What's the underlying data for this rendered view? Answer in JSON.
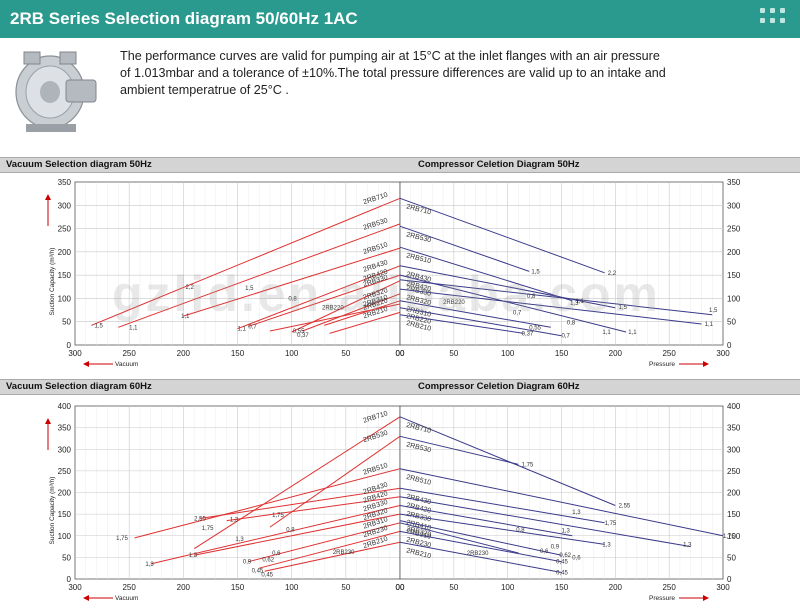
{
  "header": {
    "title": "2RB Series Selection diagram 50/60Hz 1AC"
  },
  "intro": {
    "line1": "The performance curves are valid for pumping air at 15°C at the inlet flanges with an air pressure",
    "line2": "of 1.013mbar and a tolerance of ±10%.The total pressure differences are valid up to an intake and",
    "line3": "ambient temperatrue of 25°C ."
  },
  "watermark": "gzlid.en.alibaba.com",
  "colors": {
    "header": "#2a9a8e",
    "vacuum_curve": "#e03030",
    "compressor_curve": "#3a3a8a",
    "grid": "#c8c8c8"
  },
  "pump_icon": "ring-blower-image",
  "sections": [
    {
      "left_title": "Vacuum Selection diagram 50Hz",
      "right_title": "Compressor Celetion Diagram 50Hz"
    },
    {
      "left_title": "Vacuum Selection diagram 60Hz",
      "right_title": "Compressor Celetion Diagram 60Hz"
    }
  ],
  "chart_data": [
    {
      "type": "line",
      "name": "vacuum-50hz",
      "title": "Vacuum Selection diagram 50Hz",
      "xlabel": "Vacuum",
      "ylabel": "Suction Capacity (m³/h)",
      "xlim": [
        300,
        0
      ],
      "ylim": [
        0,
        350
      ],
      "xticks": [
        "300",
        "250",
        "200",
        "150",
        "100",
        "50",
        "00"
      ],
      "yticks": [
        "0",
        "50",
        "100",
        "150",
        "200",
        "250",
        "300",
        "350"
      ],
      "grid": true,
      "series": [
        {
          "name": "2RB710",
          "points": [
            [
              285,
              42
            ],
            [
              0,
              315
            ]
          ]
        },
        {
          "name": "2RB530",
          "points": [
            [
              260,
              38
            ],
            [
              0,
              260
            ]
          ]
        },
        {
          "name": "2RB510",
          "points": [
            [
              200,
              62
            ],
            [
              0,
              208
            ]
          ]
        },
        {
          "name": "2RB430",
          "points": [
            [
              150,
              35
            ],
            [
              0,
              170
            ]
          ]
        },
        {
          "name": "2RB420",
          "points": [
            [
              140,
              40
            ],
            [
              0,
              150
            ]
          ]
        },
        {
          "name": "2RB330",
          "points": [
            [
              100,
              28
            ],
            [
              0,
              138
            ]
          ]
        },
        {
          "name": "2RB320",
          "points": [
            [
              90,
              30
            ],
            [
              0,
              110
            ]
          ]
        },
        {
          "name": "2RB310",
          "points": [
            [
              70,
              42
            ],
            [
              0,
              95
            ]
          ]
        },
        {
          "name": "2RB220",
          "points": [
            [
              120,
              30
            ],
            [
              0,
              88
            ]
          ]
        },
        {
          "name": "2RB210",
          "points": [
            [
              65,
              25
            ],
            [
              0,
              70
            ]
          ]
        }
      ],
      "annotations": [
        {
          "text": "1,5",
          "x": 282,
          "y": 42
        },
        {
          "text": "1,1",
          "x": 250,
          "y": 38
        },
        {
          "text": "2,2",
          "x": 198,
          "y": 125
        },
        {
          "text": "1,5",
          "x": 143,
          "y": 122
        },
        {
          "text": "1,1",
          "x": 202,
          "y": 62
        },
        {
          "text": "0,8",
          "x": 103,
          "y": 100
        },
        {
          "text": "1,1",
          "x": 150,
          "y": 35
        },
        {
          "text": "0,7",
          "x": 140,
          "y": 40
        },
        {
          "text": "0,55",
          "x": 99,
          "y": 30
        },
        {
          "text": "0,37",
          "x": 95,
          "y": 22
        },
        {
          "text": "2RB220",
          "x": 72,
          "y": 80
        }
      ]
    },
    {
      "type": "line",
      "name": "compressor-50hz",
      "title": "Compressor Celetion Diagram 50Hz",
      "xlabel": "Pressure",
      "ylabel": "",
      "xlim": [
        0,
        300
      ],
      "ylim": [
        0,
        350
      ],
      "xticks": [
        "00",
        "50",
        "100",
        "150",
        "200",
        "250",
        "300"
      ],
      "yticks": [
        "0",
        "50",
        "100",
        "150",
        "200",
        "250",
        "300",
        "350"
      ],
      "grid": true,
      "series": [
        {
          "name": "2RB710",
          "points": [
            [
              0,
              315
            ],
            [
              190,
              155
            ]
          ]
        },
        {
          "name": "2RB530",
          "points": [
            [
              0,
              255
            ],
            [
              120,
              158
            ]
          ]
        },
        {
          "name": "2RB510",
          "points": [
            [
              0,
              210
            ],
            [
              160,
              95
            ]
          ]
        },
        {
          "name": "2RB430",
          "points": [
            [
              0,
              170
            ],
            [
              200,
              80
            ]
          ]
        },
        {
          "name": "2RB420",
          "points": [
            [
              0,
              150
            ],
            [
              210,
              28
            ]
          ]
        },
        {
          "name": "2RB330",
          "points": [
            [
              0,
              140
            ],
            [
              290,
              65
            ]
          ]
        },
        {
          "name": "2RB320",
          "points": [
            [
              0,
              120
            ],
            [
              280,
              45
            ]
          ]
        },
        {
          "name": "2RB310",
          "points": [
            [
              0,
              95
            ],
            [
              140,
              38
            ]
          ]
        },
        {
          "name": "2RB220",
          "points": [
            [
              0,
              80
            ],
            [
              150,
              20
            ]
          ]
        },
        {
          "name": "2RB210",
          "points": [
            [
              0,
              65
            ],
            [
              115,
              25
            ]
          ]
        }
      ],
      "annotations": [
        {
          "text": "2,2",
          "x": 193,
          "y": 155
        },
        {
          "text": "1,5",
          "x": 122,
          "y": 158
        },
        {
          "text": "1,1",
          "x": 163,
          "y": 95
        },
        {
          "text": "0,8",
          "x": 118,
          "y": 105
        },
        {
          "text": "0,7",
          "x": 105,
          "y": 70
        },
        {
          "text": "1,1",
          "x": 212,
          "y": 28
        },
        {
          "text": "1,5",
          "x": 287,
          "y": 75
        },
        {
          "text": "1,1",
          "x": 283,
          "y": 45
        },
        {
          "text": "0,55",
          "x": 120,
          "y": 38
        },
        {
          "text": "0,37",
          "x": 113,
          "y": 25
        },
        {
          "text": "0,8",
          "x": 155,
          "y": 48
        },
        {
          "text": "1,1",
          "x": 188,
          "y": 28
        },
        {
          "text": "0,7",
          "x": 150,
          "y": 20
        },
        {
          "text": "1,3",
          "x": 158,
          "y": 90
        },
        {
          "text": "1,5",
          "x": 203,
          "y": 82
        },
        {
          "text": "2RB220",
          "x": 40,
          "y": 92
        }
      ]
    },
    {
      "type": "line",
      "name": "vacuum-60hz",
      "title": "Vacuum Selection diagram 60Hz",
      "xlabel": "Vacuum",
      "ylabel": "Suction Capacity (m³/h)",
      "xlim": [
        300,
        0
      ],
      "ylim": [
        0,
        400
      ],
      "xticks": [
        "300",
        "250",
        "200",
        "150",
        "100",
        "50",
        "00"
      ],
      "yticks": [
        "0",
        "50",
        "100",
        "150",
        "200",
        "250",
        "300",
        "350",
        "400"
      ],
      "grid": true,
      "series": [
        {
          "name": "2RB710",
          "points": [
            [
              190,
              70
            ],
            [
              0,
              375
            ]
          ]
        },
        {
          "name": "2RB530",
          "points": [
            [
              120,
              120
            ],
            [
              0,
              330
            ]
          ]
        },
        {
          "name": "2RB510",
          "points": [
            [
              245,
              95
            ],
            [
              0,
              255
            ]
          ]
        },
        {
          "name": "2RB430",
          "points": [
            [
              185,
              140
            ],
            [
              0,
              210
            ]
          ]
        },
        {
          "name": "2RB420",
          "points": [
            [
              160,
              135
            ],
            [
              0,
              190
            ]
          ]
        },
        {
          "name": "2RB330",
          "points": [
            [
              230,
              35
            ],
            [
              0,
              170
            ]
          ]
        },
        {
          "name": "2RB320",
          "points": [
            [
              190,
              55
            ],
            [
              0,
              150
            ]
          ]
        },
        {
          "name": "2RB310",
          "points": [
            [
              140,
              40
            ],
            [
              0,
              130
            ]
          ]
        },
        {
          "name": "2RB230",
          "points": [
            [
              130,
              25
            ],
            [
              0,
              110
            ]
          ]
        },
        {
          "name": "2RB210",
          "points": [
            [
              125,
              18
            ],
            [
              0,
              85
            ]
          ]
        }
      ],
      "annotations": [
        {
          "text": "1,75",
          "x": 262,
          "y": 95
        },
        {
          "text": "2,55",
          "x": 190,
          "y": 140
        },
        {
          "text": "1,75",
          "x": 183,
          "y": 118
        },
        {
          "text": "1,75",
          "x": 118,
          "y": 148
        },
        {
          "text": "1,3",
          "x": 157,
          "y": 138
        },
        {
          "text": "1,3",
          "x": 235,
          "y": 35
        },
        {
          "text": "1,3",
          "x": 195,
          "y": 55
        },
        {
          "text": "1,3",
          "x": 152,
          "y": 92
        },
        {
          "text": "0,8",
          "x": 105,
          "y": 115
        },
        {
          "text": "0,9",
          "x": 145,
          "y": 40
        },
        {
          "text": "0,62",
          "x": 127,
          "y": 45
        },
        {
          "text": "0,6",
          "x": 118,
          "y": 60
        },
        {
          "text": "0,45",
          "x": 137,
          "y": 20
        },
        {
          "text": "0,45",
          "x": 128,
          "y": 10
        },
        {
          "text": "2RB230",
          "x": 62,
          "y": 62
        }
      ]
    },
    {
      "type": "line",
      "name": "compressor-60hz",
      "title": "Compressor Celetion Diagram 60Hz",
      "xlabel": "Pressure",
      "ylabel": "",
      "xlim": [
        0,
        300
      ],
      "ylim": [
        0,
        400
      ],
      "xticks": [
        "00",
        "50",
        "100",
        "150",
        "200",
        "250",
        "300"
      ],
      "yticks": [
        "0",
        "50",
        "100",
        "150",
        "200",
        "250",
        "300",
        "350",
        "400"
      ],
      "grid": true,
      "series": [
        {
          "name": "2RB710",
          "points": [
            [
              0,
              375
            ],
            [
              200,
              170
            ]
          ]
        },
        {
          "name": "2RB530",
          "points": [
            [
              0,
              330
            ],
            [
              110,
              265
            ]
          ]
        },
        {
          "name": "2RB510",
          "points": [
            [
              0,
              255
            ],
            [
              300,
              100
            ]
          ]
        },
        {
          "name": "2RB430",
          "points": [
            [
              0,
              210
            ],
            [
              190,
              130
            ]
          ]
        },
        {
          "name": "2RB420",
          "points": [
            [
              0,
              190
            ],
            [
              270,
              75
            ]
          ]
        },
        {
          "name": "2RB330",
          "points": [
            [
              0,
              170
            ],
            [
              160,
              100
            ]
          ]
        },
        {
          "name": "2RB410",
          "points": [
            [
              0,
              150
            ],
            [
              190,
              80
            ]
          ]
        },
        {
          "name": "2RB320",
          "points": [
            [
              0,
              135
            ],
            [
              150,
              55
            ]
          ]
        },
        {
          "name": "2RB310",
          "points": [
            [
              0,
              130
            ],
            [
              110,
              60
            ]
          ]
        },
        {
          "name": "2RB230",
          "points": [
            [
              0,
              110
            ],
            [
              150,
              40
            ]
          ]
        },
        {
          "name": "2RB210",
          "points": [
            [
              0,
              85
            ],
            [
              150,
              15
            ]
          ]
        }
      ],
      "annotations": [
        {
          "text": "2,55",
          "x": 203,
          "y": 170
        },
        {
          "text": "1,75",
          "x": 113,
          "y": 265
        },
        {
          "text": "1,75",
          "x": 190,
          "y": 130
        },
        {
          "text": "1,3",
          "x": 160,
          "y": 155
        },
        {
          "text": "1,75",
          "x": 300,
          "y": 100
        },
        {
          "text": "1,3",
          "x": 263,
          "y": 80
        },
        {
          "text": "0,8",
          "x": 108,
          "y": 115
        },
        {
          "text": "1,3",
          "x": 150,
          "y": 112
        },
        {
          "text": "1,3",
          "x": 188,
          "y": 80
        },
        {
          "text": "0,6",
          "x": 130,
          "y": 65
        },
        {
          "text": "0,9",
          "x": 140,
          "y": 75
        },
        {
          "text": "0,62",
          "x": 148,
          "y": 55
        },
        {
          "text": "0,6",
          "x": 160,
          "y": 50
        },
        {
          "text": "0,45",
          "x": 145,
          "y": 40
        },
        {
          "text": "0,45",
          "x": 145,
          "y": 15
        },
        {
          "text": "2RB230",
          "x": 62,
          "y": 60
        }
      ]
    }
  ]
}
